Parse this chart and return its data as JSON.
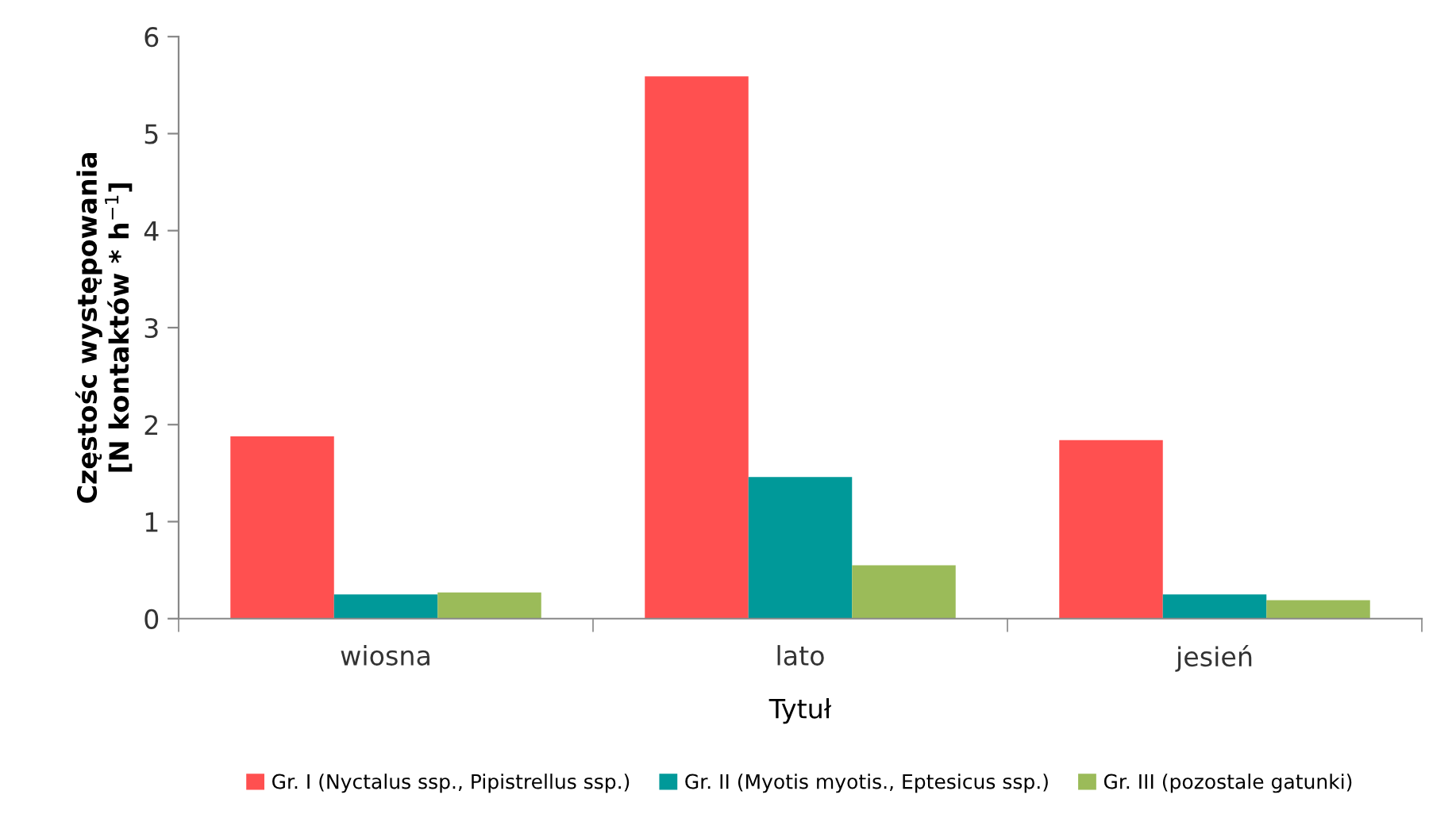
{
  "chart_data": {
    "type": "bar",
    "xlabel": "Tytuł",
    "ylabel": "Częstośc występowania\n[N kontaktów * h$^{−1}$]",
    "categories": [
      "wiosna",
      "lato",
      "jesień"
    ],
    "series": [
      {
        "name": "Gr. I (Nyctalus ssp., Pipistrellus ssp.)",
        "color": "#ff5050",
        "values": [
          1.88,
          5.59,
          1.84
        ]
      },
      {
        "name": "Gr. II (Myotis myotis., Eptesicus ssp.)",
        "color": "#009999",
        "values": [
          0.25,
          1.46,
          0.25
        ]
      },
      {
        "name": "Gr. III (pozostale gatunki)",
        "color": "#9bbb59",
        "values": [
          0.27,
          0.55,
          0.19
        ]
      }
    ],
    "ylim": [
      0,
      6
    ],
    "yticks": [
      0,
      1,
      2,
      3,
      4,
      5,
      6
    ],
    "grid": false,
    "legend": "bottom"
  }
}
